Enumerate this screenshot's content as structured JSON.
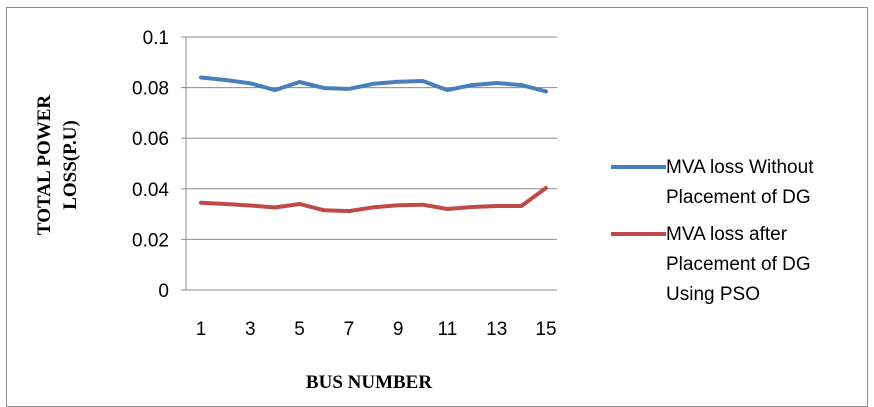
{
  "chart_data": {
    "type": "line",
    "title": "",
    "xlabel": "BUS NUMBER",
    "ylabel": [
      "TOTAL POWER",
      "LOSS(P.U)"
    ],
    "x": [
      1,
      2,
      3,
      4,
      5,
      6,
      7,
      8,
      9,
      10,
      11,
      12,
      13,
      14,
      15
    ],
    "x_tick_labels": [
      "1",
      "3",
      "5",
      "7",
      "9",
      "11",
      "13",
      "15"
    ],
    "y_tick_labels": [
      "0",
      "0.02",
      "0.04",
      "0.06",
      "0.08",
      "0.1"
    ],
    "ylim": [
      0,
      0.1
    ],
    "grid": "horizontal",
    "legend_position": "right",
    "series": [
      {
        "name": "MVA loss Without Placement of DG",
        "name_lines": [
          "MVA loss Without",
          "Placement of DG"
        ],
        "color": "#4a7ebb",
        "values": [
          0.084,
          0.083,
          0.0817,
          0.079,
          0.0822,
          0.0798,
          0.0795,
          0.0815,
          0.0823,
          0.0826,
          0.079,
          0.081,
          0.0818,
          0.081,
          0.0785
        ]
      },
      {
        "name": "MVA loss after Placement of DG Using PSO",
        "name_lines": [
          "MVA loss after",
          "Placement of DG",
          "Using PSO"
        ],
        "color": "#be4b48",
        "values": [
          0.0345,
          0.034,
          0.0334,
          0.0326,
          0.034,
          0.0315,
          0.0312,
          0.0327,
          0.0335,
          0.0337,
          0.032,
          0.0328,
          0.0332,
          0.0332,
          0.0403
        ]
      }
    ]
  }
}
